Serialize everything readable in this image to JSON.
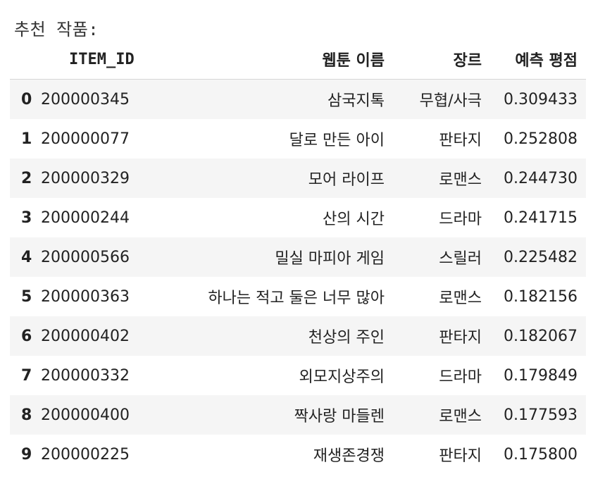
{
  "output_label": "추천 작품:",
  "columns": {
    "item_id": "ITEM_ID",
    "title": "웹툰 이름",
    "genre": "장르",
    "score": "예측 평점"
  },
  "rows": [
    {
      "index": "0",
      "item_id": "200000345",
      "title": "삼국지톡",
      "genre": "무협/사극",
      "score": "0.309433"
    },
    {
      "index": "1",
      "item_id": "200000077",
      "title": "달로 만든 아이",
      "genre": "판타지",
      "score": "0.252808"
    },
    {
      "index": "2",
      "item_id": "200000329",
      "title": "모어 라이프",
      "genre": "로맨스",
      "score": "0.244730"
    },
    {
      "index": "3",
      "item_id": "200000244",
      "title": "산의 시간",
      "genre": "드라마",
      "score": "0.241715"
    },
    {
      "index": "4",
      "item_id": "200000566",
      "title": "밀실 마피아 게임",
      "genre": "스릴러",
      "score": "0.225482"
    },
    {
      "index": "5",
      "item_id": "200000363",
      "title": "하나는 적고 둘은 너무 많아",
      "genre": "로맨스",
      "score": "0.182156"
    },
    {
      "index": "6",
      "item_id": "200000402",
      "title": "천상의 주인",
      "genre": "판타지",
      "score": "0.182067"
    },
    {
      "index": "7",
      "item_id": "200000332",
      "title": "외모지상주의",
      "genre": "드라마",
      "score": "0.179849"
    },
    {
      "index": "8",
      "item_id": "200000400",
      "title": "짝사랑 마들렌",
      "genre": "로맨스",
      "score": "0.177593"
    },
    {
      "index": "9",
      "item_id": "200000225",
      "title": "재생존경쟁",
      "genre": "판타지",
      "score": "0.175800"
    }
  ]
}
